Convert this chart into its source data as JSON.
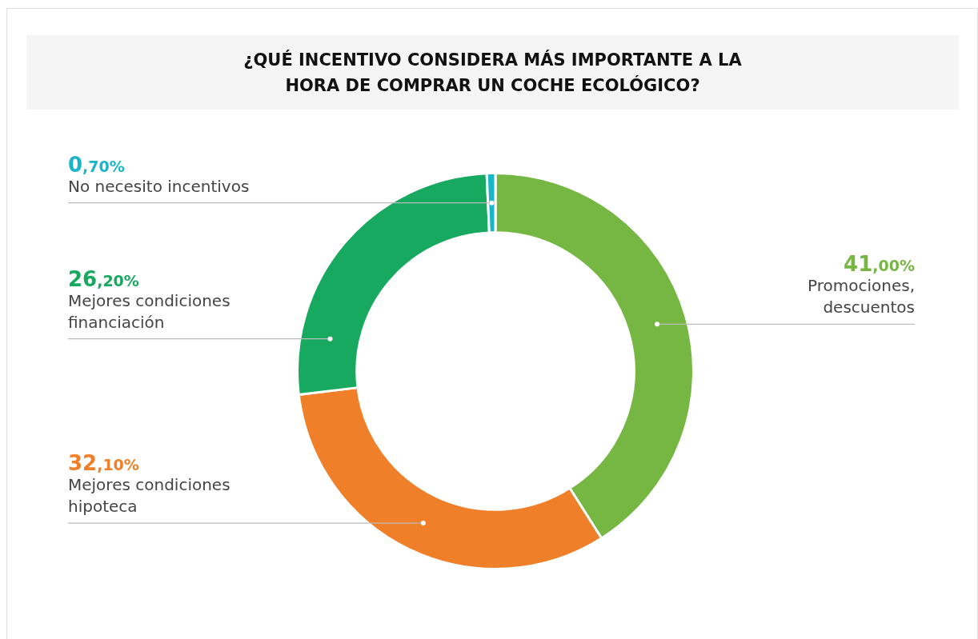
{
  "chart_data": {
    "type": "donut",
    "title": "¿QUÉ INCENTIVO CONSIDERA MÁS IMPORTANTE A LA HORA DE COMPRAR UN COCHE ECOLÓGICO?",
    "categories": [
      "Promociones,\ndescuentos",
      "Mejores condiciones\nhipoteca",
      "Mejores condiciones\nfinanciación",
      "No necesito incentivos"
    ],
    "values": [
      41.0,
      32.1,
      26.2,
      0.7
    ],
    "value_labels": [
      "41,00%",
      "32,10%",
      "26,20%",
      "0,70%"
    ],
    "colors": [
      "#76b743",
      "#ef8029",
      "#17a95f",
      "#1bb5c8"
    ],
    "legend": false
  }
}
